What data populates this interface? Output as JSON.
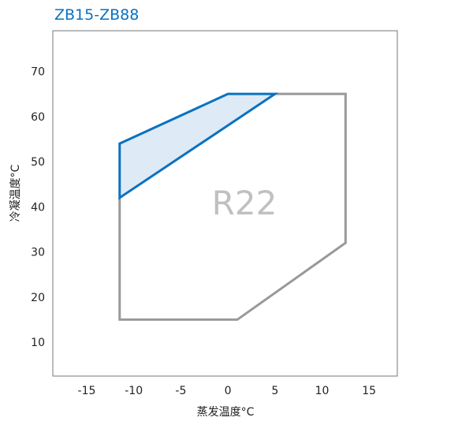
{
  "chart_data": {
    "type": "area",
    "title": "ZB15-ZB88",
    "xlabel": "蒸发温度°C",
    "ylabel": "冷凝温度°C",
    "xlim": [
      -18.6,
      18
    ],
    "ylim": [
      2.5,
      79
    ],
    "xticks": [
      -15,
      -10,
      -5,
      0,
      5,
      10,
      15
    ],
    "yticks": [
      10,
      20,
      30,
      40,
      50,
      60,
      70
    ],
    "grid": false,
    "annotation": "R22",
    "colors": {
      "title": "#0a72c0",
      "envelope": "#999999",
      "highlight_stroke": "#0a72c0",
      "highlight_fill": "#deeaf6",
      "annotation": "#c0c0c0"
    },
    "series": [
      {
        "values": [
          [
            -11.5,
            42
          ],
          [
            -11.5,
            15
          ],
          [
            1,
            15
          ],
          [
            12.5,
            32
          ],
          [
            12.5,
            65
          ],
          [
            5,
            65
          ]
        ]
      },
      {
        "values": [
          [
            -11.5,
            54
          ],
          [
            0,
            65
          ],
          [
            5,
            65
          ],
          [
            -11.5,
            42
          ]
        ]
      }
    ]
  }
}
